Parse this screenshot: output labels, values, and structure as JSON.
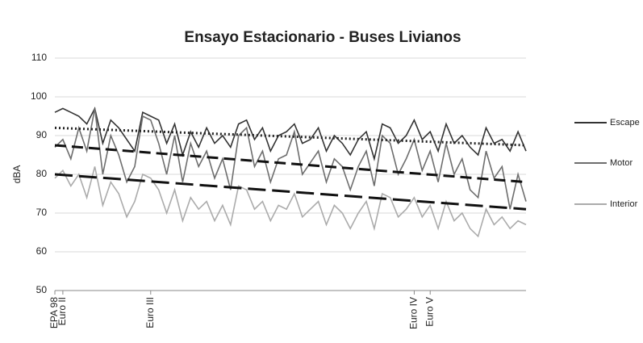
{
  "chart_data": {
    "type": "line",
    "title": "Ensayo Estacionario - Buses Livianos",
    "y_label": "dBA",
    "categories": [
      "EPA 98",
      "Euro II",
      null,
      null,
      null,
      null,
      null,
      null,
      null,
      null,
      null,
      null,
      "Euro III",
      null,
      null,
      null,
      null,
      null,
      null,
      null,
      null,
      null,
      null,
      null,
      null,
      null,
      null,
      null,
      null,
      null,
      null,
      null,
      null,
      null,
      null,
      null,
      null,
      null,
      null,
      null,
      null,
      null,
      null,
      null,
      null,
      "Euro IV",
      null,
      "Euro V",
      null,
      null,
      null,
      null,
      null,
      null,
      null,
      null,
      null,
      null,
      null,
      null
    ],
    "series": [
      {
        "name": "Escape",
        "color": "#333333",
        "values": [
          96,
          97,
          96,
          95,
          93,
          97,
          88,
          94,
          92,
          89,
          86,
          96,
          95,
          94,
          88,
          93,
          85,
          91,
          87,
          92,
          88,
          90,
          87,
          93,
          94,
          89,
          92,
          86,
          90,
          91,
          93,
          88,
          89,
          92,
          86,
          90,
          88,
          85,
          89,
          91,
          84,
          93,
          92,
          88,
          90,
          94,
          89,
          91,
          86,
          93,
          88,
          90,
          87,
          85,
          92,
          88,
          89,
          86,
          91,
          86
        ]
      },
      {
        "name": "Motor",
        "color": "#6e6e6e",
        "values": [
          87,
          89,
          84,
          92,
          86,
          97,
          80,
          90,
          85,
          78,
          82,
          95,
          94,
          88,
          80,
          90,
          78,
          88,
          82,
          86,
          79,
          84,
          76,
          90,
          92,
          82,
          86,
          78,
          84,
          85,
          91,
          80,
          83,
          86,
          78,
          84,
          82,
          76,
          82,
          86,
          77,
          90,
          88,
          80,
          84,
          89,
          81,
          86,
          78,
          88,
          80,
          84,
          76,
          74,
          86,
          79,
          82,
          71,
          80,
          73
        ]
      },
      {
        "name": "Interior",
        "color": "#ababab",
        "values": [
          79,
          81,
          77,
          80,
          74,
          82,
          72,
          78,
          75,
          69,
          73,
          80,
          79,
          76,
          70,
          76,
          68,
          74,
          71,
          73,
          68,
          72,
          67,
          77,
          76,
          71,
          73,
          68,
          72,
          71,
          75,
          69,
          71,
          73,
          67,
          72,
          70,
          66,
          70,
          73,
          66,
          75,
          74,
          69,
          71,
          74,
          69,
          72,
          66,
          73,
          68,
          70,
          66,
          64,
          71,
          67,
          69,
          66,
          68,
          67
        ]
      }
    ],
    "trendlines": [
      {
        "values": [
          92,
          87.5
        ],
        "color": "#222222",
        "dash": "2,3"
      },
      {
        "values": [
          87.5,
          78
        ],
        "color": "#111111",
        "dash": "14,7"
      },
      {
        "values": [
          80,
          71
        ],
        "color": "#111111",
        "dash": "22,8"
      }
    ],
    "ylim": [
      50,
      110
    ],
    "yticks": [
      50,
      60,
      70,
      80,
      90,
      100,
      110
    ],
    "grid": true,
    "legend": "right"
  }
}
